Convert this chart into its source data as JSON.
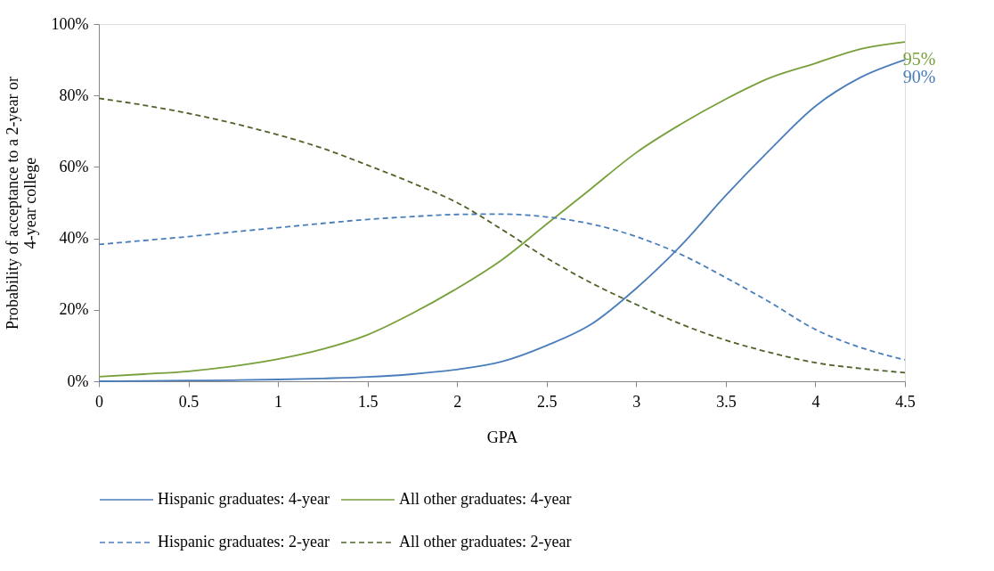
{
  "chart_data": {
    "type": "line",
    "xlabel": "GPA",
    "ylabel": "Probability of acceptance to a 2-year or 4-year college",
    "x": [
      0,
      0.25,
      0.5,
      0.75,
      1,
      1.25,
      1.5,
      1.75,
      2,
      2.25,
      2.5,
      2.75,
      3,
      3.25,
      3.5,
      3.75,
      4,
      4.25,
      4.5
    ],
    "xlim": [
      0,
      4.5
    ],
    "xticks": [
      0,
      0.5,
      1,
      1.5,
      2,
      2.5,
      3,
      3.5,
      4,
      4.5
    ],
    "ylim": [
      0,
      100
    ],
    "yticks": [
      {
        "value": 0,
        "label": "0%"
      },
      {
        "value": 20,
        "label": "20%"
      },
      {
        "value": 40,
        "label": "40%"
      },
      {
        "value": 60,
        "label": "60%"
      },
      {
        "value": 80,
        "label": "80%"
      },
      {
        "value": 100,
        "label": "100%"
      }
    ],
    "grid": false,
    "legend": "bottom",
    "marker": "none",
    "series": [
      {
        "name": "Hispanic graduates: 4-year",
        "color": "#4a7ebb",
        "line_style": "solid",
        "values": [
          0,
          0.1,
          0.2,
          0.3,
          0.5,
          0.8,
          1.2,
          2,
          3.3,
          5.5,
          10,
          16,
          26,
          38,
          52,
          65,
          77,
          85,
          90
        ],
        "value_labels": [
          null,
          null,
          null,
          null,
          null,
          null,
          null,
          null,
          null,
          null,
          null,
          null,
          null,
          null,
          null,
          null,
          null,
          null,
          "90%"
        ]
      },
      {
        "name": "All other graduates: 4-year",
        "color": "#77a03a",
        "line_style": "solid",
        "values": [
          1.3,
          2,
          2.8,
          4.2,
          6.2,
          9,
          13,
          19,
          26,
          34,
          44,
          54,
          64,
          72,
          79,
          85,
          89,
          93,
          95
        ],
        "value_labels": [
          null,
          null,
          null,
          null,
          null,
          null,
          null,
          null,
          null,
          null,
          null,
          null,
          null,
          null,
          null,
          null,
          null,
          null,
          "95%"
        ]
      },
      {
        "name": "Hispanic graduates: 2-year",
        "color": "#4a7ebb",
        "line_style": "dashed",
        "values": [
          38.3,
          39.4,
          40.5,
          41.8,
          43,
          44.2,
          45.3,
          46.1,
          46.7,
          46.8,
          46,
          44,
          40.5,
          35.5,
          29,
          22,
          14.5,
          9.5,
          6
        ]
      },
      {
        "name": "All other graduates: 2-year",
        "color": "#4f6228",
        "line_style": "dashed",
        "values": [
          79.2,
          77.3,
          75,
          72.2,
          69,
          65.2,
          60.5,
          55.5,
          50,
          42.5,
          34.5,
          27.5,
          21.5,
          16,
          11.5,
          8,
          5.2,
          3.6,
          2.4
        ]
      }
    ]
  }
}
